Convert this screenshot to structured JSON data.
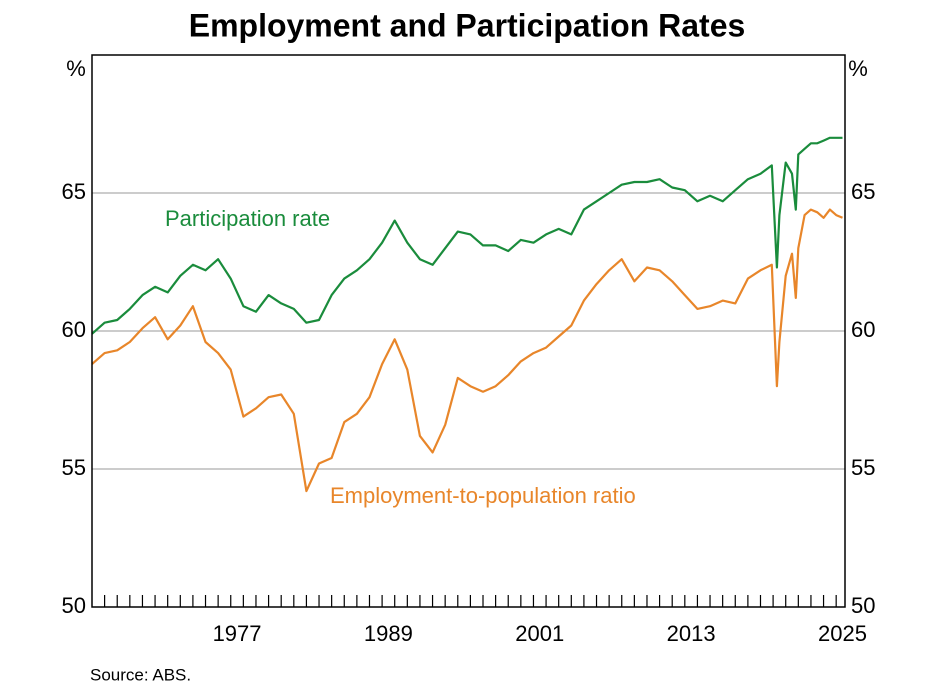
{
  "chart_data": {
    "type": "line",
    "title": "Employment and Participation Rates",
    "y_unit": "%",
    "source": "Source:   ABS.",
    "x": [
      1966,
      1967,
      1968,
      1969,
      1970,
      1971,
      1972,
      1973,
      1974,
      1975,
      1976,
      1977,
      1978,
      1979,
      1980,
      1981,
      1982,
      1983,
      1984,
      1985,
      1986,
      1987,
      1988,
      1989,
      1990,
      1991,
      1992,
      1993,
      1994,
      1995,
      1996,
      1997,
      1998,
      1999,
      2000,
      2001,
      2002,
      2003,
      2004,
      2005,
      2006,
      2007,
      2008,
      2009,
      2010,
      2011,
      2012,
      2013,
      2014,
      2015,
      2016,
      2017,
      2018,
      2019,
      2019.9,
      2020.3,
      2020.5,
      2021,
      2021.5,
      2021.8,
      2022,
      2022.5,
      2023,
      2023.5,
      2024,
      2024.5,
      2025,
      2025.5
    ],
    "series": [
      {
        "name": "Participation rate",
        "color": "#1a8c3c",
        "values": [
          59.9,
          60.3,
          60.4,
          60.8,
          61.3,
          61.6,
          61.4,
          62.0,
          62.4,
          62.2,
          62.6,
          61.9,
          60.9,
          60.7,
          61.3,
          61.0,
          60.8,
          60.3,
          60.4,
          61.3,
          61.9,
          62.2,
          62.6,
          63.2,
          64.0,
          63.2,
          62.6,
          62.4,
          63.0,
          63.6,
          63.5,
          63.1,
          63.1,
          62.9,
          63.3,
          63.2,
          63.5,
          63.7,
          63.5,
          64.4,
          64.7,
          65.0,
          65.3,
          65.4,
          65.4,
          65.5,
          65.2,
          65.1,
          64.7,
          64.9,
          64.7,
          65.1,
          65.5,
          65.7,
          66.0,
          62.3,
          64.2,
          66.1,
          65.7,
          64.4,
          66.4,
          66.6,
          66.8,
          66.8,
          66.9,
          67.0,
          67.0,
          67.0
        ]
      },
      {
        "name": "Employment-to-population ratio",
        "color": "#e8862a",
        "values": [
          58.8,
          59.2,
          59.3,
          59.6,
          60.1,
          60.5,
          59.7,
          60.2,
          60.9,
          59.6,
          59.2,
          58.6,
          56.9,
          57.2,
          57.6,
          57.7,
          57.0,
          54.2,
          55.2,
          55.4,
          56.7,
          57.0,
          57.6,
          58.8,
          59.7,
          58.6,
          56.2,
          55.6,
          56.6,
          58.3,
          58.0,
          57.8,
          58.0,
          58.4,
          58.9,
          59.2,
          59.4,
          59.8,
          60.2,
          61.1,
          61.7,
          62.2,
          62.6,
          61.8,
          62.3,
          62.2,
          61.8,
          61.3,
          60.8,
          60.9,
          61.1,
          61.0,
          61.9,
          62.2,
          62.4,
          58.0,
          59.6,
          62.0,
          62.8,
          61.2,
          63.0,
          64.2,
          64.4,
          64.3,
          64.1,
          64.4,
          64.2,
          64.1
        ]
      }
    ],
    "xlim": [
      1966,
      2025.7
    ],
    "xticks": [
      1977,
      1989,
      2001,
      2013,
      2025
    ],
    "minor_xticks": [
      1967,
      1968,
      1969,
      1970,
      1971,
      1972,
      1973,
      1974,
      1975,
      1976,
      1977,
      1978,
      1979,
      1980,
      1981,
      1982,
      1983,
      1984,
      1985,
      1986,
      1987,
      1988,
      1989,
      1990,
      1991,
      1992,
      1993,
      1994,
      1995,
      1996,
      1997,
      1998,
      1999,
      2000,
      2001,
      2002,
      2003,
      2004,
      2005,
      2006,
      2007,
      2008,
      2009,
      2010,
      2011,
      2012,
      2013,
      2014,
      2015,
      2016,
      2017,
      2018,
      2019,
      2020,
      2021,
      2022,
      2023,
      2024,
      2025
    ],
    "ylim": [
      50,
      70
    ],
    "yticks": [
      50,
      55,
      60,
      65
    ],
    "grid": true
  }
}
